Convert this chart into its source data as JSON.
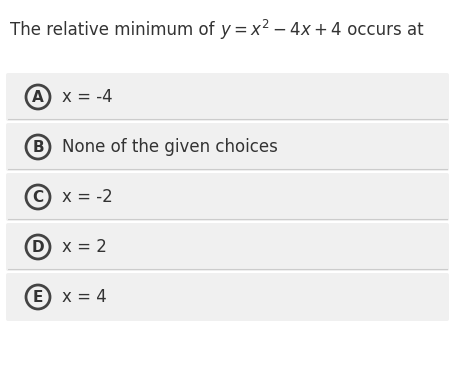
{
  "title_prefix": "The relative minimum of ",
  "title_math": "$y = x^2 - 4x + 4$",
  "title_suffix": " occurs at",
  "background_color": "#ffffff",
  "option_bg_color": "#f0f0f0",
  "options": [
    {
      "label": "A",
      "text": "x = -4"
    },
    {
      "label": "B",
      "text": "None of the given choices"
    },
    {
      "label": "C",
      "text": "x = -2"
    },
    {
      "label": "D",
      "text": "x = 2"
    },
    {
      "label": "E",
      "text": "x = 4"
    }
  ],
  "circle_edge_color": "#444444",
  "text_color": "#333333",
  "divider_color": "#cccccc",
  "font_size_title": 12,
  "font_size_option": 12,
  "font_size_label": 11,
  "fig_width": 4.55,
  "fig_height": 3.7,
  "dpi": 100
}
